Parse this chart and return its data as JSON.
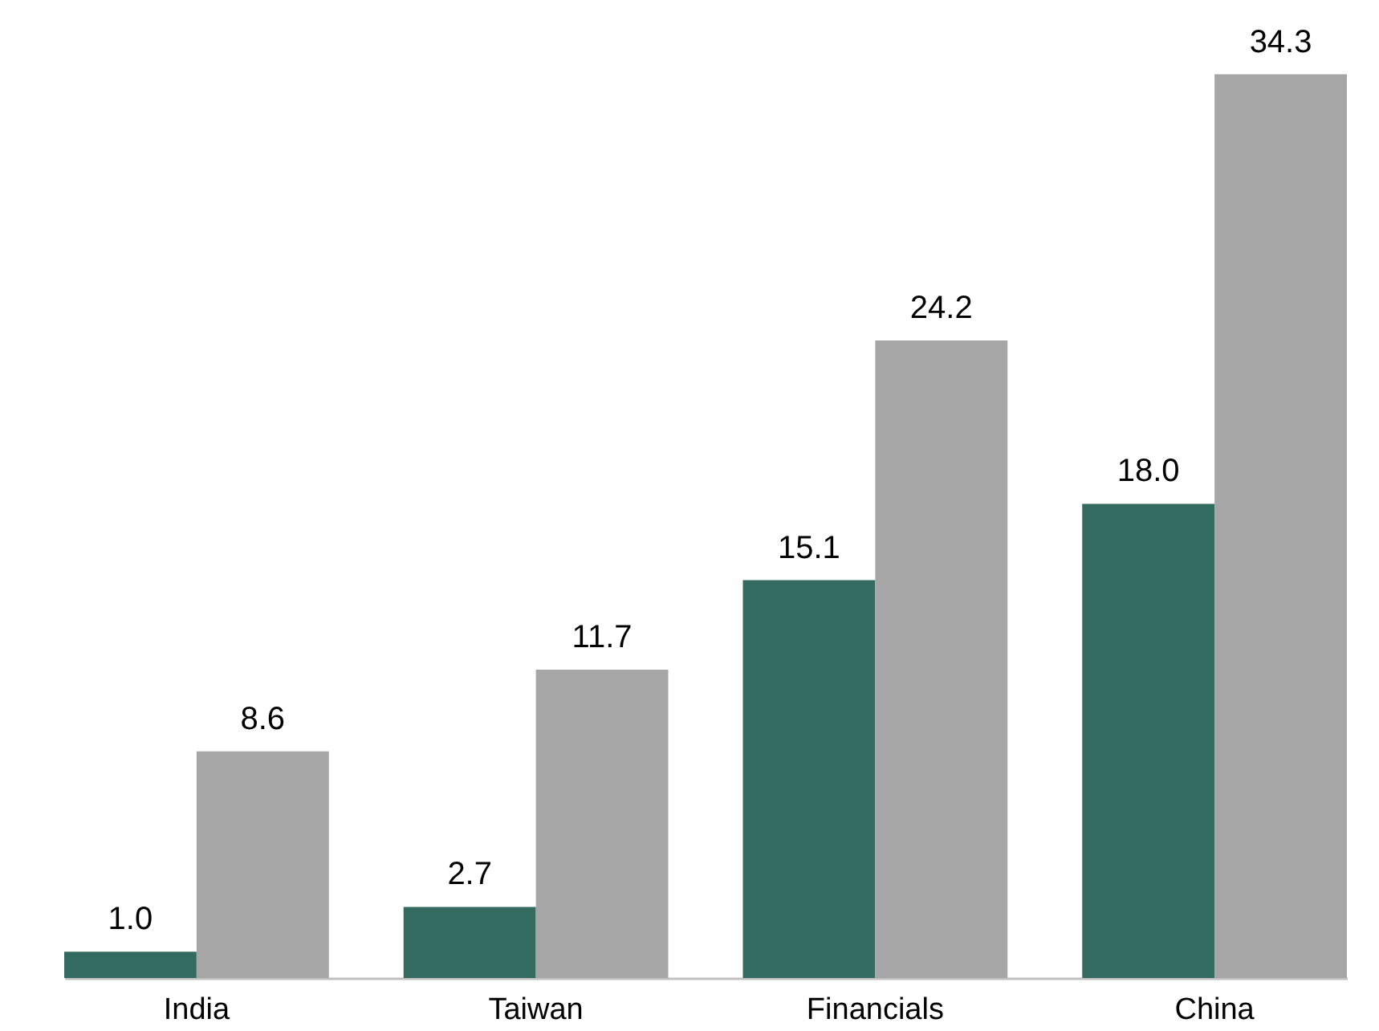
{
  "chart_data": {
    "type": "bar",
    "categories": [
      "India",
      "Taiwan",
      "Financials",
      "China"
    ],
    "series": [
      {
        "color": "#336b61",
        "values": [
          1.0,
          2.7,
          15.1,
          18.0
        ],
        "value_labels": [
          "1.0",
          "2.7",
          "15.1",
          "18.0"
        ]
      },
      {
        "color": "#a6a6a6",
        "values": [
          8.6,
          11.7,
          24.2,
          34.3
        ],
        "value_labels": [
          "8.6",
          "11.7",
          "24.2",
          "34.3"
        ]
      }
    ],
    "ylim": [
      0,
      37
    ],
    "grid": false,
    "legend": false
  }
}
